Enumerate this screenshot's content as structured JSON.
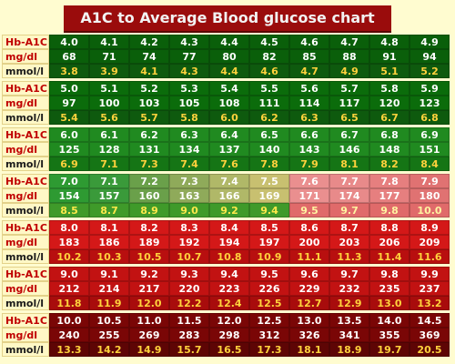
{
  "chart_data": {
    "type": "table",
    "title": "A1C to Average Blood glucose chart",
    "row_labels": {
      "a1c": "Hb-A1C",
      "mgdl": "mg/dl",
      "mmol": "mmol/l"
    },
    "colors": {
      "title_bg": "#9a0c0c",
      "green_band": "#0a6a0a",
      "light_green_band": "#1f8a1f",
      "red_band": "#c41414",
      "dark_red_band": "#7a0606",
      "mmol_text_light": "#ffd23c"
    },
    "blocks": [
      {
        "a1c": [
          "4.0",
          "4.1",
          "4.2",
          "4.3",
          "4.4",
          "4.5",
          "4.6",
          "4.7",
          "4.8",
          "4.9"
        ],
        "mgdl": [
          "68",
          "71",
          "74",
          "77",
          "80",
          "82",
          "85",
          "88",
          "91",
          "94"
        ],
        "mmol": [
          "3.8",
          "3.9",
          "4.1",
          "4.3",
          "4.4",
          "4.6",
          "4.7",
          "4.9",
          "5.1",
          "5.2"
        ]
      },
      {
        "a1c": [
          "5.0",
          "5.1",
          "5.2",
          "5.3",
          "5.4",
          "5.5",
          "5.6",
          "5.7",
          "5.8",
          "5.9"
        ],
        "mgdl": [
          "97",
          "100",
          "103",
          "105",
          "108",
          "111",
          "114",
          "117",
          "120",
          "123"
        ],
        "mmol": [
          "5.4",
          "5.6",
          "5.7",
          "5.8",
          "6.0",
          "6.2",
          "6.3",
          "6.5",
          "6.7",
          "6.8"
        ]
      },
      {
        "a1c": [
          "6.0",
          "6.1",
          "6.2",
          "6.3",
          "6.4",
          "6.5",
          "6.6",
          "6.7",
          "6.8",
          "6.9"
        ],
        "mgdl": [
          "125",
          "128",
          "131",
          "134",
          "137",
          "140",
          "143",
          "146",
          "148",
          "151"
        ],
        "mmol": [
          "6.9",
          "7.1",
          "7.3",
          "7.4",
          "7.6",
          "7.8",
          "7.9",
          "8.1",
          "8.2",
          "8.4"
        ]
      },
      {
        "a1c": [
          "7.0",
          "7.1",
          "7.2",
          "7.3",
          "7.4",
          "7.5",
          "7.6",
          "7.7",
          "7.8",
          "7.9"
        ],
        "mgdl": [
          "154",
          "157",
          "160",
          "163",
          "166",
          "169",
          "171",
          "174",
          "177",
          "180"
        ],
        "mmol": [
          "8.5",
          "8.7",
          "8.9",
          "9.0",
          "9.2",
          "9.4",
          "9.5",
          "9.7",
          "9.8",
          "10.0"
        ]
      },
      {
        "a1c": [
          "8.0",
          "8.1",
          "8.2",
          "8.3",
          "8.4",
          "8.5",
          "8.6",
          "8.7",
          "8.8",
          "8.9"
        ],
        "mgdl": [
          "183",
          "186",
          "189",
          "192",
          "194",
          "197",
          "200",
          "203",
          "206",
          "209"
        ],
        "mmol": [
          "10.2",
          "10.3",
          "10.5",
          "10.7",
          "10.8",
          "10.9",
          "11.1",
          "11.3",
          "11.4",
          "11.6"
        ]
      },
      {
        "a1c": [
          "9.0",
          "9.1",
          "9.2",
          "9.3",
          "9.4",
          "9.5",
          "9.6",
          "9.7",
          "9.8",
          "9.9"
        ],
        "mgdl": [
          "212",
          "214",
          "217",
          "220",
          "223",
          "226",
          "229",
          "232",
          "235",
          "237"
        ],
        "mmol": [
          "11.8",
          "11.9",
          "12.0",
          "12.2",
          "12.4",
          "12.5",
          "12.7",
          "12.9",
          "13.0",
          "13.2"
        ]
      },
      {
        "a1c": [
          "10.0",
          "10.5",
          "11.0",
          "11.5",
          "12.0",
          "12.5",
          "13.0",
          "13.5",
          "14.0",
          "14.5"
        ],
        "mgdl": [
          "240",
          "255",
          "269",
          "283",
          "298",
          "312",
          "326",
          "341",
          "355",
          "369"
        ],
        "mmol": [
          "13.3",
          "14.2",
          "14.9",
          "15.7",
          "16.5",
          "17.3",
          "18.1",
          "18.9",
          "19.7",
          "20.5"
        ]
      }
    ]
  }
}
